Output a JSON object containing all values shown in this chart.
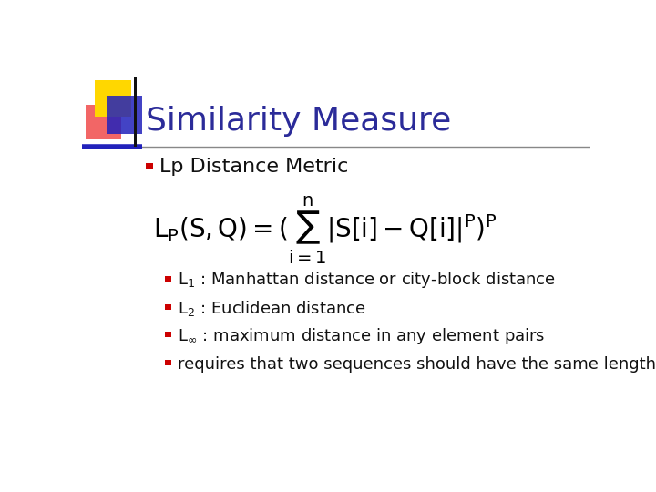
{
  "title": "Similarity Measure",
  "title_color": "#2B2B99",
  "title_fontsize": 26,
  "background_color": "#FFFFFF",
  "bullet1": "Lp Distance Metric",
  "bullet1_fontsize": 16,
  "sub_bullets_text": [
    "$\\mathsf{L_1}$ : Manhattan distance or city-block distance",
    "$\\mathsf{L_2}$ : Euclidean distance",
    "$\\mathsf{L_{\\infty}}$ : maximum distance in any element pairs",
    "requires that two sequences should have the same length"
  ],
  "sub_bullet_fontsize": 13,
  "bullet_color": "#CC0000",
  "formula_fontsize": 16,
  "header_line_color": "#888888",
  "decoration_yellow": "#FFD700",
  "decoration_red": "#EE3333",
  "decoration_blue": "#2222BB",
  "formula_color": "#000000",
  "text_color": "#111111",
  "bullet1_color": "#111111"
}
